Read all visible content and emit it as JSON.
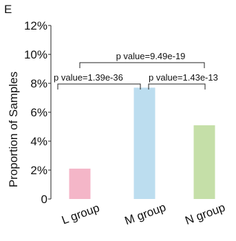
{
  "panel_label": "E",
  "chart_data": {
    "type": "bar",
    "categories": [
      "L group",
      "M group",
      "N group"
    ],
    "values": [
      2.1,
      7.7,
      5.1
    ],
    "colors": [
      "#F4B6C8",
      "#BCDDEF",
      "#C5DFA8"
    ],
    "xlabel": "",
    "ylabel": "Proportion of Samples",
    "ylim": [
      0,
      12
    ],
    "yticks": [
      "0",
      "2%",
      "4%",
      "6%",
      "8%",
      "10%",
      "12%"
    ],
    "ytick_values": [
      0,
      2,
      4,
      6,
      8,
      10,
      12
    ],
    "grid": false,
    "annotations": [
      {
        "from": 1,
        "to": 2,
        "text": "p value=9.49e-19"
      },
      {
        "from": 0,
        "to": 1,
        "text": "p value=1.39e-36"
      },
      {
        "from": 1,
        "to": 2,
        "text": "p value=1.43e-13"
      }
    ]
  }
}
